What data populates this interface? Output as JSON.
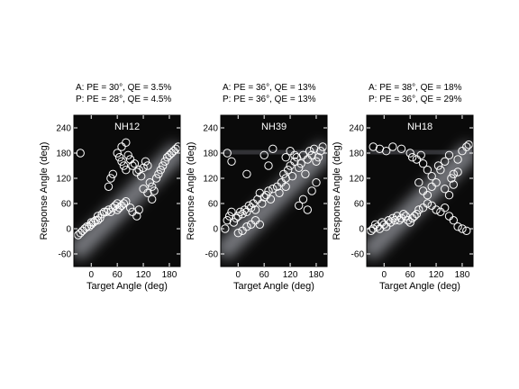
{
  "chart_data": [
    {
      "type": "scatter",
      "title": "NH12",
      "stats": [
        "A: PE = 30°, QE = 3.5%",
        "P: PE = 28°, QE = 4.5%"
      ],
      "xlabel": "Target Angle (deg)",
      "ylabel": "Response Angle (deg)",
      "xlim": [
        -40,
        205
      ],
      "ylim": [
        -90,
        270
      ],
      "xticks": [
        0,
        60,
        120,
        180
      ],
      "yticks": [
        -60,
        0,
        60,
        120,
        180,
        240
      ],
      "heatmap": "dark background with bright diagonal band along response = target",
      "points": [
        [
          -30,
          -15
        ],
        [
          -25,
          -10
        ],
        [
          -20,
          -5
        ],
        [
          -15,
          0
        ],
        [
          -10,
          5
        ],
        [
          -5,
          5
        ],
        [
          0,
          10
        ],
        [
          0,
          15
        ],
        [
          5,
          15
        ],
        [
          10,
          20
        ],
        [
          15,
          20
        ],
        [
          15,
          30
        ],
        [
          20,
          25
        ],
        [
          25,
          35
        ],
        [
          30,
          40
        ],
        [
          35,
          40
        ],
        [
          40,
          45
        ],
        [
          45,
          40
        ],
        [
          50,
          50
        ],
        [
          55,
          55
        ],
        [
          60,
          45
        ],
        [
          60,
          60
        ],
        [
          65,
          50
        ],
        [
          70,
          55
        ],
        [
          75,
          60
        ],
        [
          80,
          65
        ],
        [
          90,
          50
        ],
        [
          95,
          40
        ],
        [
          105,
          30
        ],
        [
          110,
          45
        ],
        [
          60,
          180
        ],
        [
          65,
          170
        ],
        [
          70,
          160
        ],
        [
          75,
          150
        ],
        [
          80,
          140
        ],
        [
          85,
          175
        ],
        [
          90,
          165
        ],
        [
          95,
          150
        ],
        [
          100,
          155
        ],
        [
          105,
          135
        ],
        [
          110,
          140
        ],
        [
          115,
          125
        ],
        [
          120,
          145
        ],
        [
          125,
          160
        ],
        [
          130,
          150
        ],
        [
          135,
          110
        ],
        [
          140,
          100
        ],
        [
          145,
          90
        ],
        [
          150,
          120
        ],
        [
          155,
          130
        ],
        [
          160,
          140
        ],
        [
          165,
          150
        ],
        [
          170,
          160
        ],
        [
          175,
          170
        ],
        [
          180,
          175
        ],
        [
          185,
          180
        ],
        [
          190,
          185
        ],
        [
          195,
          190
        ],
        [
          200,
          195
        ],
        [
          -25,
          180
        ],
        [
          70,
          195
        ],
        [
          80,
          205
        ],
        [
          120,
          95
        ],
        [
          130,
          85
        ],
        [
          140,
          70
        ],
        [
          40,
          100
        ],
        [
          45,
          120
        ],
        [
          50,
          130
        ]
      ]
    },
    {
      "type": "scatter",
      "title": "NH39",
      "stats": [
        "A: PE = 36°, QE = 13%",
        "P: PE = 36°, QE = 13%"
      ],
      "xlabel": "Target Angle (deg)",
      "ylabel": "Response Angle (deg)",
      "xlim": [
        -40,
        205
      ],
      "ylim": [
        -90,
        270
      ],
      "xticks": [
        0,
        60,
        120,
        180
      ],
      "yticks": [
        -60,
        0,
        60,
        120,
        180,
        240
      ],
      "heatmap": "dark background with diffuse bright band along response = target and near response = 180",
      "points": [
        [
          -30,
          0
        ],
        [
          -25,
          20
        ],
        [
          -20,
          30
        ],
        [
          -15,
          40
        ],
        [
          -10,
          15
        ],
        [
          -5,
          25
        ],
        [
          0,
          30
        ],
        [
          5,
          40
        ],
        [
          10,
          35
        ],
        [
          15,
          45
        ],
        [
          20,
          40
        ],
        [
          25,
          55
        ],
        [
          30,
          50
        ],
        [
          35,
          60
        ],
        [
          40,
          45
        ],
        [
          45,
          70
        ],
        [
          50,
          85
        ],
        [
          55,
          60
        ],
        [
          60,
          75
        ],
        [
          65,
          80
        ],
        [
          70,
          90
        ],
        [
          75,
          70
        ],
        [
          80,
          95
        ],
        [
          90,
          100
        ],
        [
          95,
          85
        ],
        [
          100,
          110
        ],
        [
          105,
          130
        ],
        [
          110,
          120
        ],
        [
          115,
          140
        ],
        [
          120,
          150
        ],
        [
          125,
          125
        ],
        [
          130,
          160
        ],
        [
          135,
          170
        ],
        [
          140,
          145
        ],
        [
          145,
          155
        ],
        [
          150,
          175
        ],
        [
          155,
          130
        ],
        [
          160,
          165
        ],
        [
          165,
          185
        ],
        [
          170,
          175
        ],
        [
          175,
          190
        ],
        [
          180,
          160
        ],
        [
          185,
          170
        ],
        [
          190,
          185
        ],
        [
          195,
          195
        ],
        [
          -25,
          180
        ],
        [
          -15,
          160
        ],
        [
          20,
          130
        ],
        [
          60,
          175
        ],
        [
          70,
          150
        ],
        [
          80,
          190
        ],
        [
          110,
          100
        ],
        [
          140,
          55
        ],
        [
          150,
          70
        ],
        [
          160,
          45
        ],
        [
          170,
          90
        ],
        [
          180,
          110
        ],
        [
          0,
          -10
        ],
        [
          10,
          -5
        ],
        [
          20,
          5
        ],
        [
          30,
          10
        ],
        [
          40,
          20
        ],
        [
          50,
          10
        ],
        [
          110,
          170
        ],
        [
          120,
          185
        ],
        [
          130,
          175
        ]
      ]
    },
    {
      "type": "scatter",
      "title": "NH18",
      "stats": [
        "A: PE = 38°, QE = 18%",
        "P: PE = 36°, QE = 29%"
      ],
      "xlabel": "Target Angle (deg)",
      "ylabel": "Response Angle (deg)",
      "xlim": [
        -40,
        205
      ],
      "ylim": [
        -90,
        270
      ],
      "xticks": [
        0,
        60,
        120,
        180
      ],
      "yticks": [
        -60,
        0,
        60,
        120,
        180,
        240
      ],
      "heatmap": "dark background with bright diagonal band and secondary band near response = 180",
      "points": [
        [
          -30,
          -5
        ],
        [
          -25,
          0
        ],
        [
          -20,
          10
        ],
        [
          -15,
          5
        ],
        [
          -10,
          0
        ],
        [
          -5,
          15
        ],
        [
          0,
          10
        ],
        [
          5,
          5
        ],
        [
          10,
          20
        ],
        [
          15,
          15
        ],
        [
          20,
          25
        ],
        [
          25,
          20
        ],
        [
          30,
          30
        ],
        [
          35,
          20
        ],
        [
          40,
          25
        ],
        [
          45,
          35
        ],
        [
          50,
          30
        ],
        [
          55,
          20
        ],
        [
          60,
          15
        ],
        [
          65,
          25
        ],
        [
          70,
          30
        ],
        [
          75,
          35
        ],
        [
          80,
          45
        ],
        [
          90,
          50
        ],
        [
          100,
          60
        ],
        [
          110,
          55
        ],
        [
          120,
          45
        ],
        [
          130,
          40
        ],
        [
          140,
          50
        ],
        [
          150,
          30
        ],
        [
          160,
          20
        ],
        [
          170,
          5
        ],
        [
          180,
          0
        ],
        [
          190,
          -5
        ],
        [
          -25,
          195
        ],
        [
          -10,
          190
        ],
        [
          5,
          185
        ],
        [
          20,
          195
        ],
        [
          40,
          190
        ],
        [
          60,
          180
        ],
        [
          65,
          170
        ],
        [
          75,
          165
        ],
        [
          85,
          175
        ],
        [
          90,
          155
        ],
        [
          100,
          140
        ],
        [
          110,
          125
        ],
        [
          120,
          110
        ],
        [
          125,
          150
        ],
        [
          130,
          140
        ],
        [
          140,
          160
        ],
        [
          150,
          175
        ],
        [
          155,
          120
        ],
        [
          160,
          130
        ],
        [
          170,
          165
        ],
        [
          180,
          185
        ],
        [
          190,
          195
        ],
        [
          195,
          200
        ],
        [
          80,
          110
        ],
        [
          90,
          90
        ],
        [
          100,
          80
        ],
        [
          110,
          100
        ],
        [
          140,
          95
        ],
        [
          150,
          80
        ],
        [
          160,
          105
        ],
        [
          170,
          135
        ]
      ]
    }
  ]
}
